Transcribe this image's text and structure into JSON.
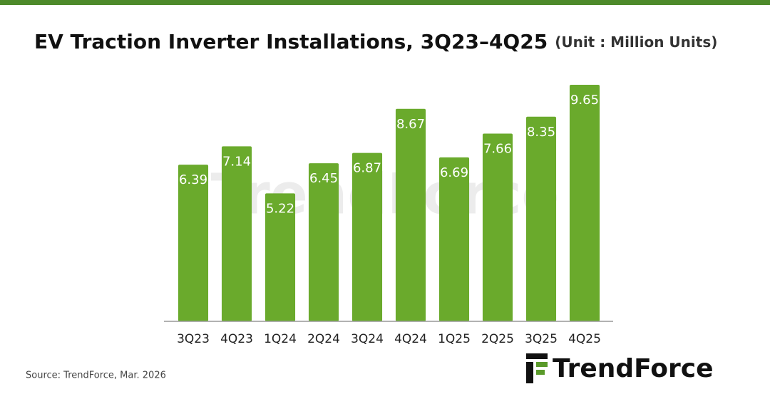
{
  "chart_data": {
    "type": "bar",
    "title": "EV Traction Inverter Installations, 3Q23–4Q25",
    "subtitle": "(Unit : Million Units)",
    "categories": [
      "3Q23",
      "4Q23",
      "1Q24",
      "2Q24",
      "3Q24",
      "4Q24",
      "1Q25",
      "2Q25",
      "3Q25",
      "4Q25"
    ],
    "values": [
      6.39,
      7.14,
      5.22,
      6.45,
      6.87,
      8.67,
      6.69,
      7.66,
      8.35,
      9.65
    ],
    "color": "#6aaa2c",
    "ylim": [
      0,
      10
    ],
    "source": "Source: TrendForce, Mar. 2026",
    "brand": "TrendForce"
  }
}
